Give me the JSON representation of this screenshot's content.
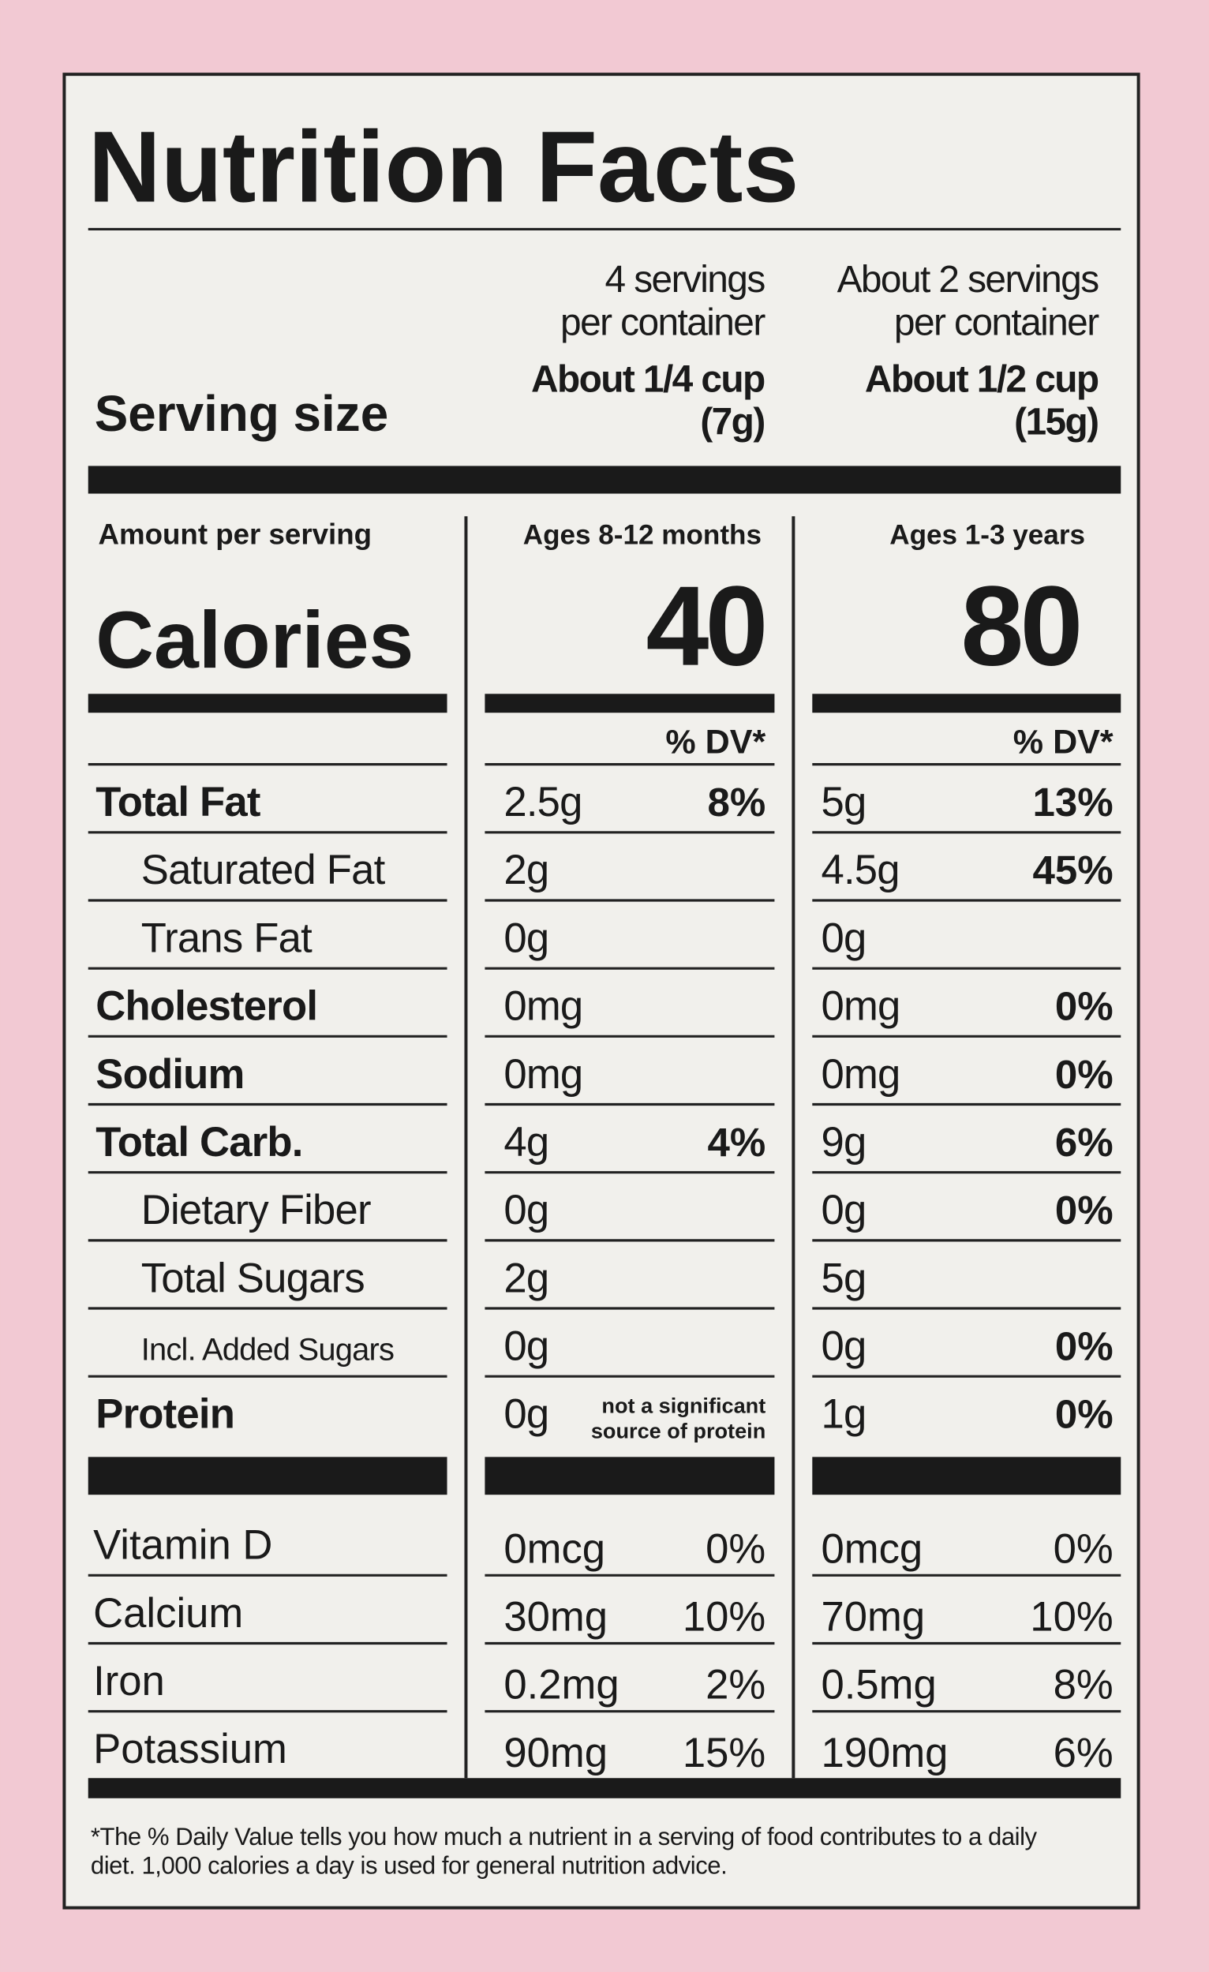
{
  "title": "Nutrition Facts",
  "serving_size_label": "Serving size",
  "amount_per_serving": "Amount per serving",
  "calories_label": "Calories",
  "dv_header": "% DV*",
  "columns": [
    {
      "servings": [
        "4 servings",
        "per container"
      ],
      "serving_size": [
        "About 1/4 cup",
        "(7g)"
      ],
      "age": "Ages 8-12 months",
      "calories": 40
    },
    {
      "servings": [
        "About 2 servings",
        "per container"
      ],
      "serving_size": [
        "About 1/2 cup",
        "(15g)"
      ],
      "age": "Ages 1-3 years",
      "calories": 80
    }
  ],
  "rows": [
    {
      "name": "Total Fat",
      "bold": true,
      "indent": false,
      "values": [
        [
          "2.5g",
          "8%"
        ],
        [
          "5g",
          "13%"
        ]
      ]
    },
    {
      "name": "Saturated Fat",
      "bold": false,
      "indent": true,
      "values": [
        [
          "2g",
          null
        ],
        [
          "4.5g",
          "45%"
        ]
      ]
    },
    {
      "name": "Trans Fat",
      "bold": false,
      "indent": true,
      "values": [
        [
          "0g",
          null
        ],
        [
          "0g",
          null
        ]
      ]
    },
    {
      "name": "Cholesterol",
      "bold": true,
      "indent": false,
      "values": [
        [
          "0mg",
          null
        ],
        [
          "0mg",
          "0%"
        ]
      ]
    },
    {
      "name": "Sodium",
      "bold": true,
      "indent": false,
      "values": [
        [
          "0mg",
          null
        ],
        [
          "0mg",
          "0%"
        ]
      ]
    },
    {
      "name": "Total Carb.",
      "bold": true,
      "indent": false,
      "values": [
        [
          "4g",
          "4%"
        ],
        [
          "9g",
          "6%"
        ]
      ]
    },
    {
      "name": "Dietary Fiber",
      "bold": false,
      "indent": true,
      "values": [
        [
          "0g",
          null
        ],
        [
          "0g",
          "0%"
        ]
      ]
    },
    {
      "name": "Total Sugars",
      "bold": false,
      "indent": true,
      "values": [
        [
          "2g",
          null
        ],
        [
          "5g",
          null
        ]
      ]
    },
    {
      "name": "Incl. Added Sugars",
      "bold": false,
      "indent": true,
      "small": true,
      "values": [
        [
          "0g",
          null
        ],
        [
          "0g",
          "0%"
        ]
      ]
    },
    {
      "name": "Protein",
      "bold": true,
      "indent": false,
      "values": [
        [
          "0g",
          [
            "not a significant",
            "source of protein"
          ]
        ],
        [
          "1g",
          "0%"
        ]
      ]
    }
  ],
  "vitamins": [
    {
      "name": "Vitamin D",
      "values": [
        [
          "0mcg",
          "0%"
        ],
        [
          "0mcg",
          "0%"
        ]
      ]
    },
    {
      "name": "Calcium",
      "values": [
        [
          "30mg",
          "10%"
        ],
        [
          "70mg",
          "10%"
        ]
      ]
    },
    {
      "name": "Iron",
      "values": [
        [
          "0.2mg",
          "2%"
        ],
        [
          "0.5mg",
          "8%"
        ]
      ]
    },
    {
      "name": "Potassium",
      "values": [
        [
          "90mg",
          "15%"
        ],
        [
          "190mg",
          "6%"
        ]
      ]
    }
  ],
  "footnote": [
    "*The % Daily Value tells you how much a nutrient in a serving of food contributes to a daily",
    "diet. 1,000 calories a day is used for general nutrition advice."
  ]
}
